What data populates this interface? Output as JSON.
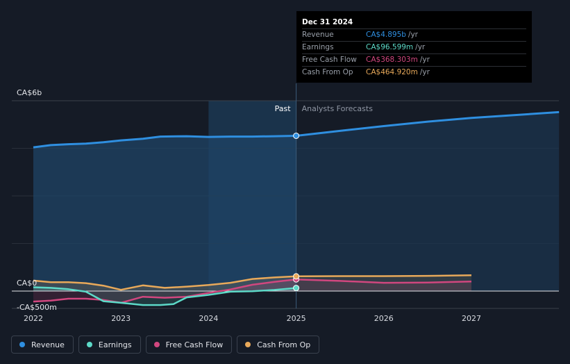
{
  "chart_data": {
    "type": "line",
    "x_ticks": [
      "2022",
      "2023",
      "2024",
      "2025",
      "2026",
      "2027"
    ],
    "x_range": [
      2021.75,
      2028.0
    ],
    "ylim": [
      -500,
      6000
    ],
    "y_labels": [
      {
        "label": "CA$6b",
        "value": 6000
      },
      {
        "label": "CA$0",
        "value": 0
      },
      {
        "label": "-CA$500m",
        "value": -500
      }
    ],
    "divider_x": 2025.0,
    "past_band_start": 2024.0,
    "section_labels": {
      "past": "Past",
      "forecast": "Analysts Forecasts"
    },
    "series": [
      {
        "name": "Revenue",
        "key": "revenue",
        "color": "#2f8fe0",
        "x": [
          2022.0,
          2022.2,
          2022.4,
          2022.6,
          2022.8,
          2023.0,
          2023.25,
          2023.45,
          2023.75,
          2024.0,
          2024.25,
          2024.5,
          2024.75,
          2025.0
        ],
        "values": [
          4530,
          4600,
          4630,
          4650,
          4690,
          4750,
          4800,
          4870,
          4880,
          4860,
          4870,
          4870,
          4880,
          4895
        ],
        "forecast_x": [
          2025.0,
          2025.5,
          2026.0,
          2026.5,
          2027.0,
          2027.5,
          2028.0
        ],
        "forecast_values": [
          4895,
          5050,
          5200,
          5340,
          5460,
          5550,
          5640
        ]
      },
      {
        "name": "Earnings",
        "key": "earnings",
        "color": "#5ddac8",
        "x": [
          2022.0,
          2022.2,
          2022.4,
          2022.6,
          2022.8,
          2023.0,
          2023.25,
          2023.45,
          2023.6,
          2023.75,
          2024.0,
          2024.25,
          2024.5,
          2024.75,
          2025.0
        ],
        "values": [
          120,
          100,
          60,
          -20,
          -320,
          -370,
          -440,
          -440,
          -410,
          -200,
          -120,
          -20,
          -5,
          35,
          97
        ]
      },
      {
        "name": "Free Cash Flow",
        "key": "fcf",
        "color": "#d1477f",
        "x": [
          2022.0,
          2022.2,
          2022.4,
          2022.6,
          2022.8,
          2023.0,
          2023.25,
          2023.5,
          2023.75,
          2024.0,
          2024.25,
          2024.5,
          2024.75,
          2025.0
        ],
        "values": [
          -330,
          -300,
          -240,
          -240,
          -280,
          -370,
          -180,
          -210,
          -180,
          -60,
          50,
          200,
          290,
          368
        ],
        "forecast_x": [
          2025.0,
          2025.5,
          2026.0,
          2026.5,
          2027.0
        ],
        "forecast_values": [
          368,
          320,
          260,
          270,
          300
        ]
      },
      {
        "name": "Cash From Op",
        "key": "cfo",
        "color": "#e8a95a",
        "x": [
          2022.0,
          2022.2,
          2022.4,
          2022.6,
          2022.8,
          2023.0,
          2023.25,
          2023.5,
          2023.75,
          2024.0,
          2024.25,
          2024.5,
          2024.75,
          2025.0
        ],
        "values": [
          330,
          280,
          280,
          250,
          170,
          40,
          180,
          100,
          140,
          190,
          260,
          380,
          430,
          465
        ],
        "forecast_x": [
          2025.0,
          2025.5,
          2026.0,
          2026.5,
          2027.0
        ],
        "forecast_values": [
          465,
          470,
          470,
          480,
          500
        ]
      }
    ]
  },
  "tooltip": {
    "date": "Dec 31 2024",
    "rows": [
      {
        "label": "Revenue",
        "value": "CA$4.895b",
        "unit": "/yr",
        "color": "#2f8fe0"
      },
      {
        "label": "Earnings",
        "value": "CA$96.599m",
        "unit": "/yr",
        "color": "#5ddac8"
      },
      {
        "label": "Free Cash Flow",
        "value": "CA$368.303m",
        "unit": "/yr",
        "color": "#d1477f"
      },
      {
        "label": "Cash From Op",
        "value": "CA$464.920m",
        "unit": "/yr",
        "color": "#e8a95a"
      }
    ]
  },
  "legend": [
    {
      "label": "Revenue",
      "color": "#2f8fe0"
    },
    {
      "label": "Earnings",
      "color": "#5ddac8"
    },
    {
      "label": "Free Cash Flow",
      "color": "#d1477f"
    },
    {
      "label": "Cash From Op",
      "color": "#e8a95a"
    }
  ]
}
